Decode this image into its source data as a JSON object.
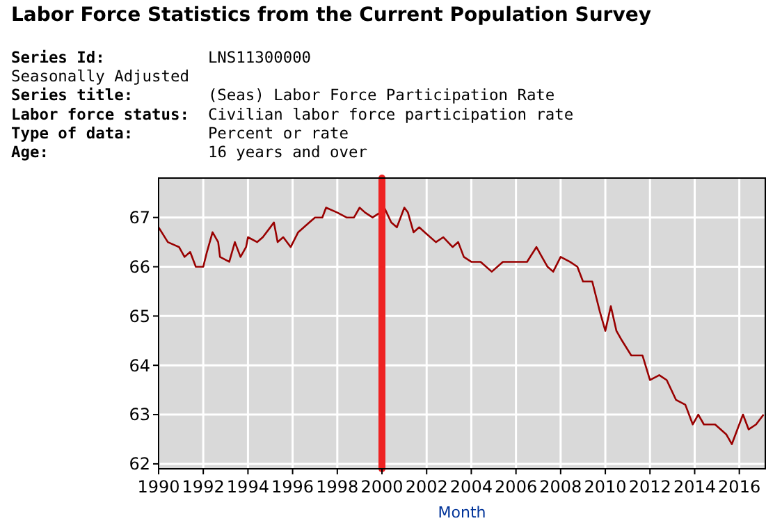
{
  "chart_data": {
    "type": "line",
    "title": "Labor Force Statistics from the Current Population Survey",
    "annotations": [
      "Series Id:           LNS11300000",
      "Seasonally Adjusted",
      "Series title:        (Seas) Labor Force Participation Rate",
      "Labor force status:  Civilian labor force participation rate",
      "Type of data:        Percent or rate",
      "Age:                 16 years and over"
    ],
    "xlabel": "Month",
    "x": [
      "1990-01",
      "1990-06",
      "1990-12",
      "1991-03",
      "1991-06",
      "1991-09",
      "1992-01",
      "1992-03",
      "1992-06",
      "1992-09",
      "1992-10",
      "1993-03",
      "1993-06",
      "1993-09",
      "1993-12",
      "1994-01",
      "1994-06",
      "1994-09",
      "1995-01",
      "1995-03",
      "1995-05",
      "1995-08",
      "1995-12",
      "1996-04",
      "1996-10",
      "1997-01",
      "1997-05",
      "1997-07",
      "1998-01",
      "1998-06",
      "1998-10",
      "1999-01",
      "1999-04",
      "1999-08",
      "1999-12",
      "2000-01",
      "2000-06",
      "2000-09",
      "2001-01",
      "2001-03",
      "2001-06",
      "2001-09",
      "2001-12",
      "2002-06",
      "2002-10",
      "2003-03",
      "2003-06",
      "2003-09",
      "2004-01",
      "2004-06",
      "2004-12",
      "2005-06",
      "2005-10",
      "2006-03",
      "2006-07",
      "2006-12",
      "2007-03",
      "2007-06",
      "2007-09",
      "2008-01",
      "2008-06",
      "2008-10",
      "2009-01",
      "2009-06",
      "2009-10",
      "2010-01",
      "2010-04",
      "2010-07",
      "2010-10",
      "2011-03",
      "2011-09",
      "2012-01",
      "2012-06",
      "2012-10",
      "2013-03",
      "2013-08",
      "2013-12",
      "2014-03",
      "2014-06",
      "2014-12",
      "2015-06",
      "2015-09",
      "2016-03",
      "2016-06",
      "2016-10",
      "2017-02"
    ],
    "series": [
      {
        "color": "#990000",
        "values": [
          66.8,
          66.5,
          66.4,
          66.2,
          66.3,
          66.0,
          66.0,
          66.3,
          66.7,
          66.5,
          66.2,
          66.1,
          66.5,
          66.2,
          66.4,
          66.6,
          66.5,
          66.6,
          66.8,
          66.9,
          66.5,
          66.6,
          66.4,
          66.7,
          66.9,
          67.0,
          67.0,
          67.2,
          67.1,
          67.0,
          67.0,
          67.2,
          67.1,
          67.0,
          67.1,
          67.3,
          66.9,
          66.8,
          67.2,
          67.1,
          66.7,
          66.8,
          66.7,
          66.5,
          66.6,
          66.4,
          66.5,
          66.2,
          66.1,
          66.1,
          65.9,
          66.1,
          66.1,
          66.1,
          66.1,
          66.4,
          66.2,
          66.0,
          65.9,
          66.2,
          66.1,
          66.0,
          65.7,
          65.7,
          65.1,
          64.7,
          65.2,
          64.7,
          64.5,
          64.2,
          64.2,
          63.7,
          63.8,
          63.7,
          63.3,
          63.2,
          62.8,
          63.0,
          62.8,
          62.8,
          62.6,
          62.4,
          63.0,
          62.7,
          62.8,
          63.0
        ]
      }
    ],
    "xlim": [
      "1990-01",
      "2017-03"
    ],
    "xticks": [
      {
        "value": "1990",
        "label": "1990"
      },
      {
        "value": "1992",
        "label": "1992"
      },
      {
        "value": "1994",
        "label": "1994"
      },
      {
        "value": "1996",
        "label": "1996"
      },
      {
        "value": "1998",
        "label": "1998"
      },
      {
        "value": "2000",
        "label": "2000"
      },
      {
        "value": "2002",
        "label": "2002"
      },
      {
        "value": "2004",
        "label": "2004"
      },
      {
        "value": "2006",
        "label": "2006"
      },
      {
        "value": "2008",
        "label": "2008"
      },
      {
        "value": "2010",
        "label": "2010"
      },
      {
        "value": "2012",
        "label": "2012"
      },
      {
        "value": "2014",
        "label": "2014"
      },
      {
        "value": "2016",
        "label": "2016"
      }
    ],
    "ylim": [
      61.9,
      67.8
    ],
    "yticks": [
      62,
      63,
      64,
      65,
      66,
      67
    ],
    "ref_lines": [
      {
        "axis": "x",
        "value": "2000-01",
        "color": "#ee2222"
      }
    ],
    "grid": true
  }
}
